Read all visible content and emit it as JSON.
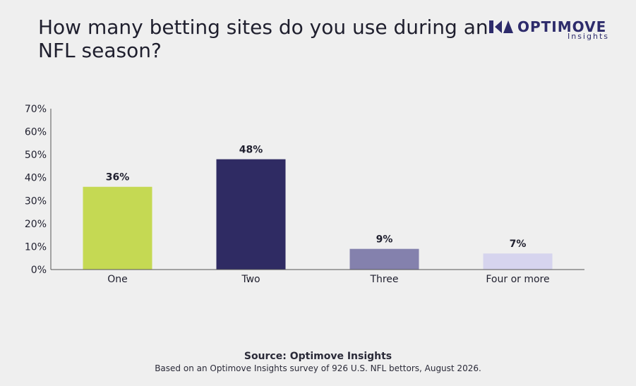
{
  "title": "How many betting sites do you use during an NFL season?",
  "brand": {
    "name": "OPTIMOVE",
    "sub": "Insights",
    "color": "#2d2b6b"
  },
  "chart_data": {
    "type": "bar",
    "categories": [
      "One",
      "Two",
      "Three",
      "Four or more"
    ],
    "values": [
      36,
      48,
      9,
      7
    ],
    "value_labels": [
      "36%",
      "48%",
      "9%",
      "7%"
    ],
    "colors": [
      "#c5d953",
      "#2f2b63",
      "#8481ad",
      "#d6d4ee"
    ],
    "ylim": [
      0,
      70
    ],
    "yticks": [
      "0%",
      "10%",
      "20%",
      "30%",
      "40%",
      "50%",
      "60%",
      "70%"
    ],
    "grid": false,
    "legend": "none"
  },
  "footer": {
    "source": "Source: Optimove Insights",
    "note": "Based on an Optimove Insights survey of 926 U.S. NFL bettors, August 2026."
  }
}
